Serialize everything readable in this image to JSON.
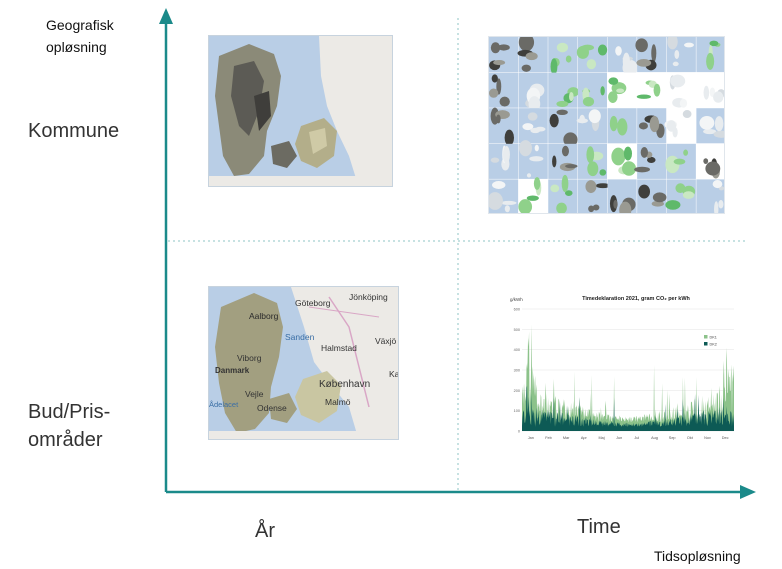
{
  "axes": {
    "y_title": "Geografisk opløsning",
    "x_title": "Tidsopløsning",
    "accent_color": "#1b8a8a"
  },
  "rows": [
    {
      "label": "Kommune"
    },
    {
      "label": "Bud/Pris-\nområder"
    }
  ],
  "columns": [
    {
      "label": "År"
    },
    {
      "label": "Time"
    }
  ],
  "map_bidzone": {
    "labels": [
      "Göteborg",
      "Jönköping",
      "Aalborg",
      "Sanden",
      "Halmstad",
      "Växjö",
      "Viborg",
      "Danmark",
      "København",
      "Malmö",
      "Odense",
      "Kal",
      "Vejle",
      "Ådelacet"
    ]
  },
  "chart_data": {
    "type": "area",
    "title": "Timedeklaration 2021, gram CO₂ per kWh",
    "ylabel": "g/kWh",
    "categories": [
      "Jan",
      "Feb",
      "Mar",
      "Apr",
      "Maj",
      "Jun",
      "Jul",
      "Aug",
      "Sep",
      "Okt",
      "Nov",
      "Dec"
    ],
    "ylim": [
      0,
      600
    ],
    "yticks": [
      0,
      100,
      200,
      300,
      400,
      500,
      600
    ],
    "series": [
      {
        "name": "DK1",
        "color": "#8cc28a"
      },
      {
        "name": "DK2",
        "color": "#0d5a55"
      }
    ]
  }
}
